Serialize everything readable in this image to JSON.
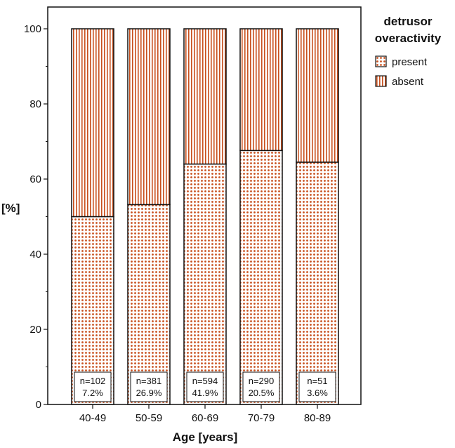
{
  "chart_data": {
    "type": "bar",
    "stacked": true,
    "categories": [
      "40-49",
      "50-59",
      "60-69",
      "70-79",
      "80-89"
    ],
    "series": [
      {
        "name": "present",
        "values": [
          50.0,
          53.2,
          64.0,
          67.6,
          64.5
        ]
      },
      {
        "name": "absent",
        "values": [
          50.0,
          46.8,
          36.0,
          32.4,
          35.5
        ]
      }
    ],
    "annotations": [
      {
        "n": "n=102",
        "pct": "7.2%"
      },
      {
        "n": "n=381",
        "pct": "26.9%"
      },
      {
        "n": "n=594",
        "pct": "41.9%"
      },
      {
        "n": "n=290",
        "pct": "20.5%"
      },
      {
        "n": "n=51",
        "pct": "3.6%"
      }
    ],
    "xlabel": "Age [years]",
    "ylabel": "[%]",
    "ylim": [
      0,
      100
    ],
    "yticks": [
      0,
      20,
      40,
      60,
      80,
      100
    ],
    "legend": {
      "title_line1": "detrusor",
      "title_line2": "overactivity",
      "placement": "right"
    },
    "colors": {
      "pattern": "#c8501e",
      "outline": "#111111"
    },
    "grid": false
  }
}
